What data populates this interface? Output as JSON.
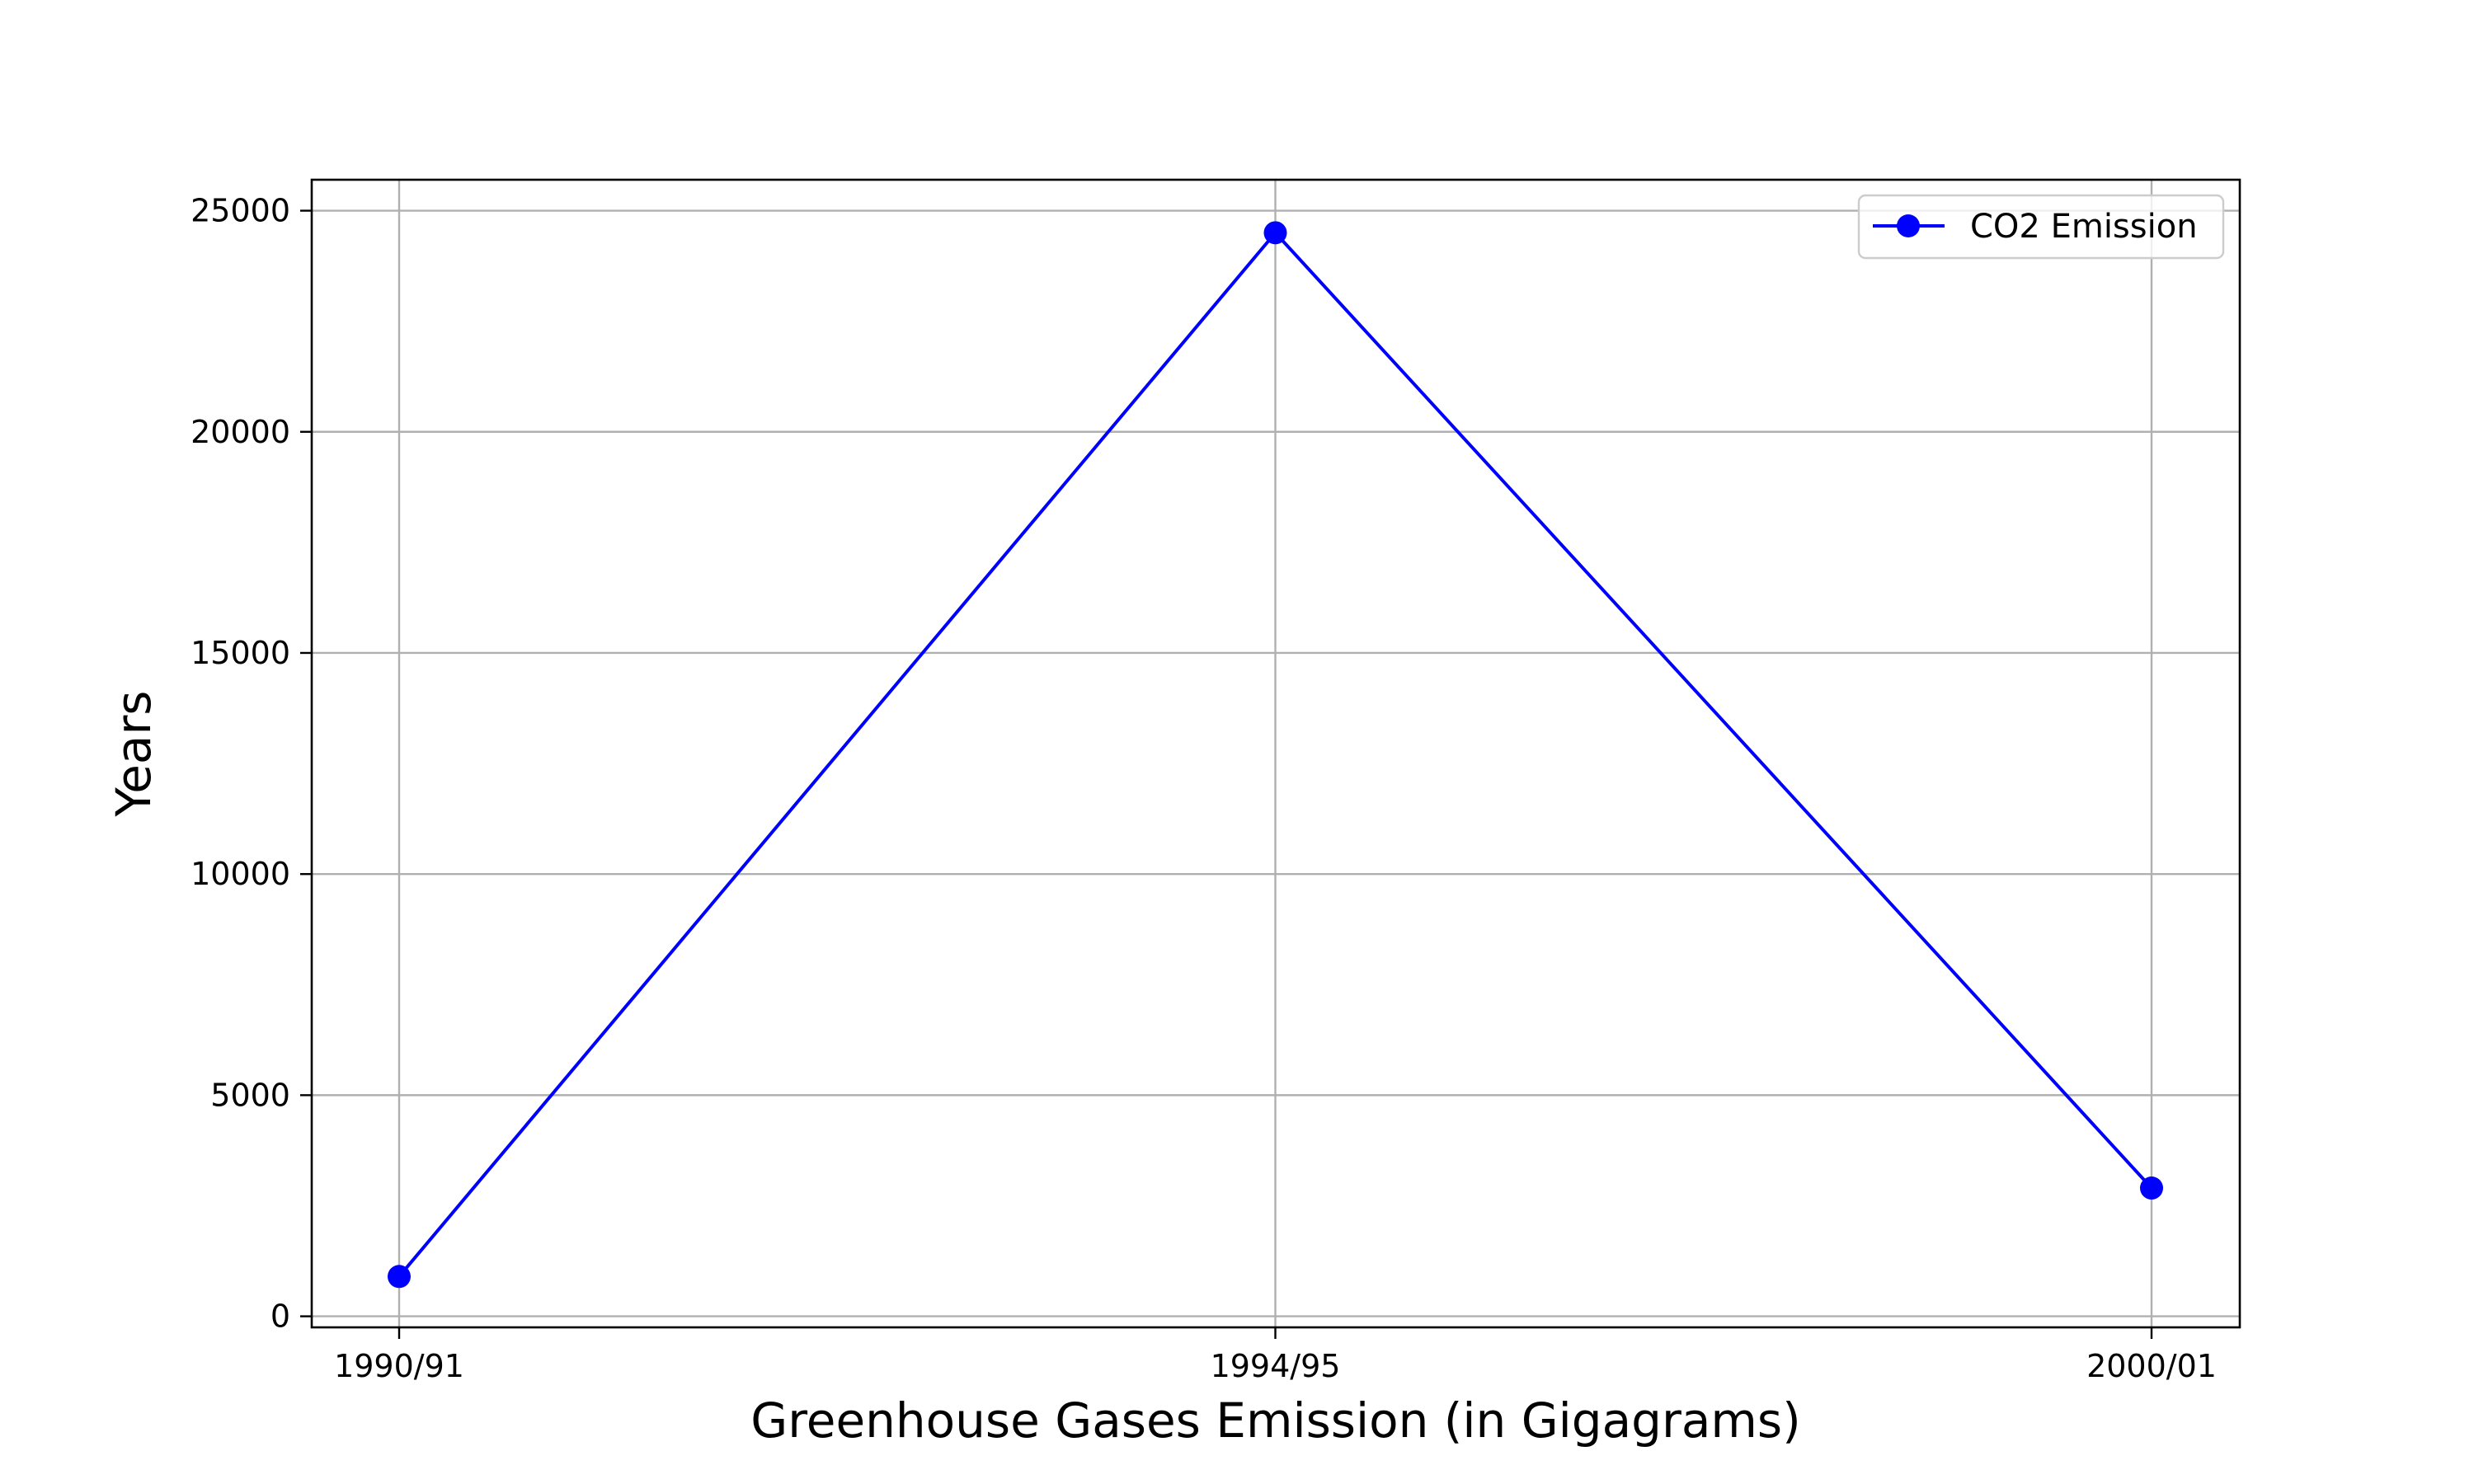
{
  "chart_data": {
    "type": "line",
    "categories": [
      "1990/91",
      "1994/95",
      "2000/01"
    ],
    "series": [
      {
        "name": "CO2 Emission",
        "values": [
          900,
          24500,
          2900
        ],
        "color": "#0000ff",
        "marker": "circle"
      }
    ],
    "xlabel": "Greenhouse Gases Emission (in Gigagrams)",
    "ylabel": "Years",
    "ylim": [
      -250,
      25700
    ],
    "yticks": [
      0,
      5000,
      10000,
      15000,
      20000,
      25000
    ],
    "grid": true,
    "legend_position": "top-right"
  }
}
